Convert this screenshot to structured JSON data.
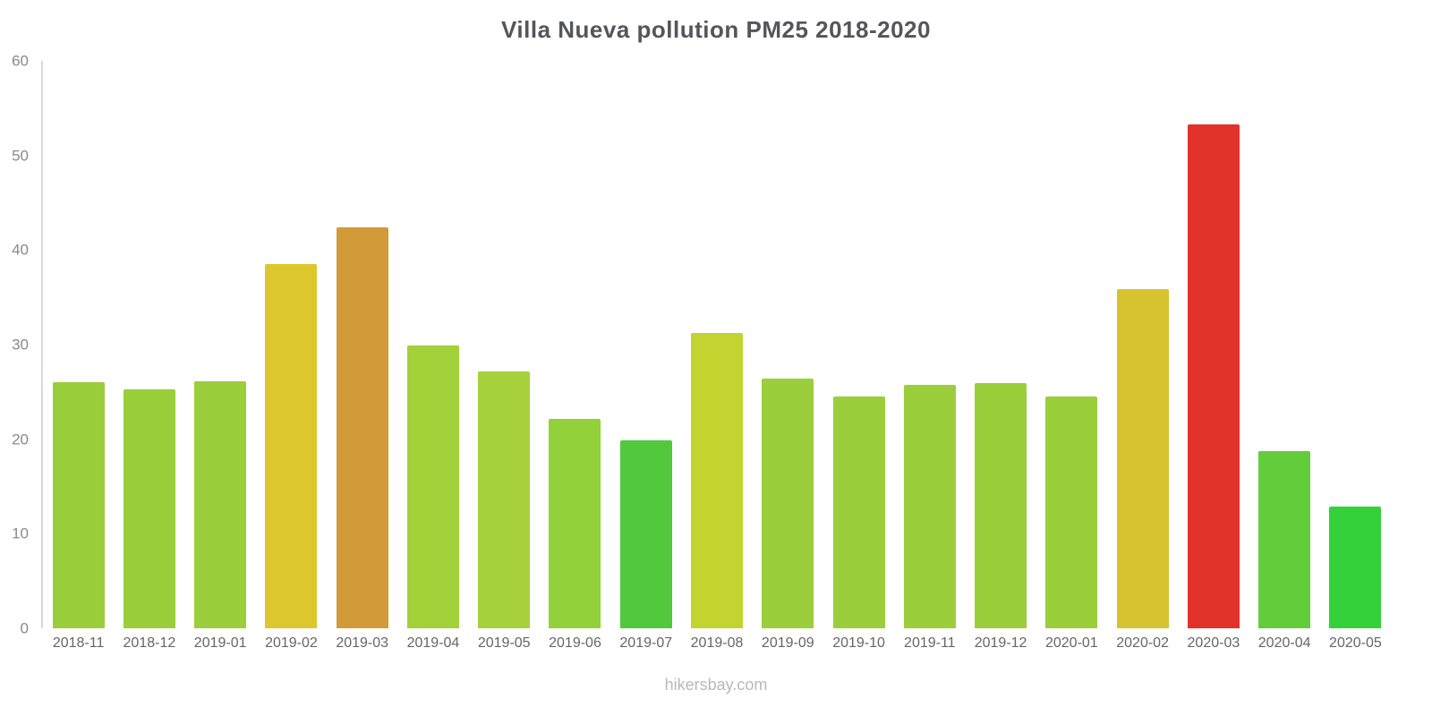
{
  "chart_data": {
    "type": "bar",
    "title": "Villa Nueva pollution PM25 2018-2020",
    "categories": [
      "2018-11",
      "2018-12",
      "2019-01",
      "2019-02",
      "2019-03",
      "2019-04",
      "2019-05",
      "2019-06",
      "2019-07",
      "2019-08",
      "2019-09",
      "2019-10",
      "2019-11",
      "2019-12",
      "2020-01",
      "2020-02",
      "2020-03",
      "2020-04",
      "2020-05"
    ],
    "values": [
      26.0,
      25.3,
      26.1,
      38.5,
      42.4,
      29.9,
      27.2,
      22.1,
      19.9,
      31.2,
      26.4,
      24.5,
      25.7,
      25.9,
      24.5,
      35.9,
      53.3,
      18.7,
      12.9
    ],
    "colors": [
      "#9bce3b",
      "#9bce3b",
      "#9bce3b",
      "#dcc72e",
      "#d29a38",
      "#a2d13a",
      "#a6d13a",
      "#93d13a",
      "#52c83c",
      "#c3d32f",
      "#9bce3b",
      "#9bce3b",
      "#9bce3b",
      "#9bce3b",
      "#9bce3b",
      "#d7c32f",
      "#e2332a",
      "#63cc3a",
      "#35d13a"
    ],
    "ylim": [
      0,
      60
    ],
    "yticks": [
      0,
      10,
      20,
      30,
      40,
      50,
      60
    ],
    "xlabel": "",
    "ylabel": "",
    "grid": false,
    "legend": "none"
  },
  "footer": {
    "text": "hikersbay.com"
  }
}
